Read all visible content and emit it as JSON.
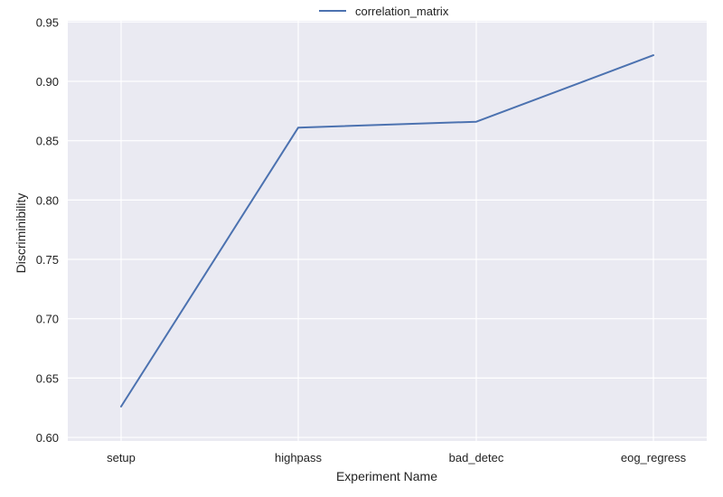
{
  "chart_data": {
    "type": "line",
    "categories": [
      "setup",
      "highpass",
      "bad_detec",
      "eog_regress"
    ],
    "series": [
      {
        "name": "correlation_matrix",
        "values": [
          0.626,
          0.861,
          0.866,
          0.922
        ]
      }
    ],
    "xlabel": "Experiment Name",
    "ylabel": "Discriminibility",
    "ylim": [
      0.597,
      0.951
    ],
    "yticks": [
      "0.60",
      "0.65",
      "0.70",
      "0.75",
      "0.80",
      "0.85",
      "0.90",
      "0.95"
    ],
    "grid": true,
    "legend_position": "top-center",
    "colors": {
      "background": "#eaeaf2",
      "grid": "#ffffff",
      "series": "#4c72b0"
    }
  }
}
